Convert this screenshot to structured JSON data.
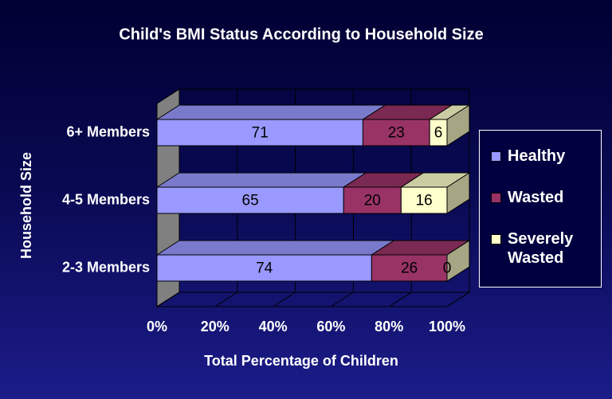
{
  "chart_data": {
    "type": "bar",
    "orientation": "horizontal",
    "stacked": "percent",
    "three_d": true,
    "title": "Child's BMI Status According to Household Size",
    "x_label": "Total Percentage of Children",
    "y_label": "Household Size",
    "categories": [
      "2-3 Members",
      "4-5 Members",
      "6+ Members"
    ],
    "series": [
      {
        "name": "Healthy",
        "color": "#9999ff",
        "values": [
          74,
          65,
          71
        ]
      },
      {
        "name": "Wasted",
        "color": "#993366",
        "values": [
          26,
          20,
          23
        ]
      },
      {
        "name": "Severely Wasted",
        "color": "#ffffcc",
        "values": [
          0,
          16,
          6
        ]
      }
    ],
    "xlim": [
      0,
      100
    ],
    "xticks": [
      {
        "value": 0,
        "label": "0%"
      },
      {
        "value": 20,
        "label": "20%"
      },
      {
        "value": 40,
        "label": "40%"
      },
      {
        "value": 60,
        "label": "60%"
      },
      {
        "value": 80,
        "label": "80%"
      },
      {
        "value": 100,
        "label": "100%"
      }
    ],
    "grid": true,
    "legend": "right"
  }
}
